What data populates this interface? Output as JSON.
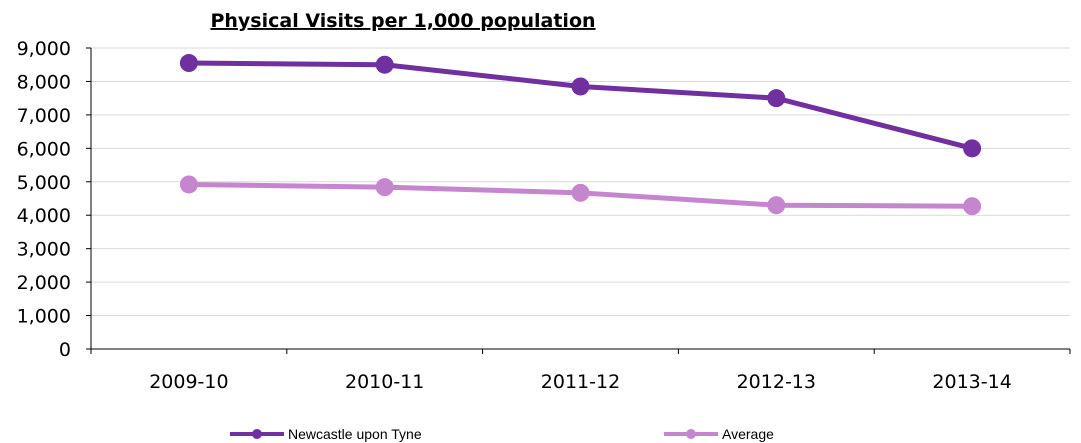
{
  "chart_data": {
    "type": "line",
    "title": "Physical Visits per 1,000 population",
    "categories": [
      "2009-10",
      "2010-11",
      "2011-12",
      "2012-13",
      "2013-14"
    ],
    "series": [
      {
        "name": "Newcastle upon Tyne",
        "color": "#7030a0",
        "values": [
          8550,
          8500,
          7850,
          7500,
          6000
        ]
      },
      {
        "name": "Average",
        "color": "#c585cf",
        "values": [
          4920,
          4840,
          4670,
          4300,
          4270
        ]
      }
    ],
    "ylim": [
      0,
      9000
    ],
    "yticks": [
      "0",
      "1,000",
      "2,000",
      "3,000",
      "4,000",
      "5,000",
      "6,000",
      "7,000",
      "8,000",
      "9,000"
    ],
    "grid": true,
    "legend": "bottom"
  }
}
